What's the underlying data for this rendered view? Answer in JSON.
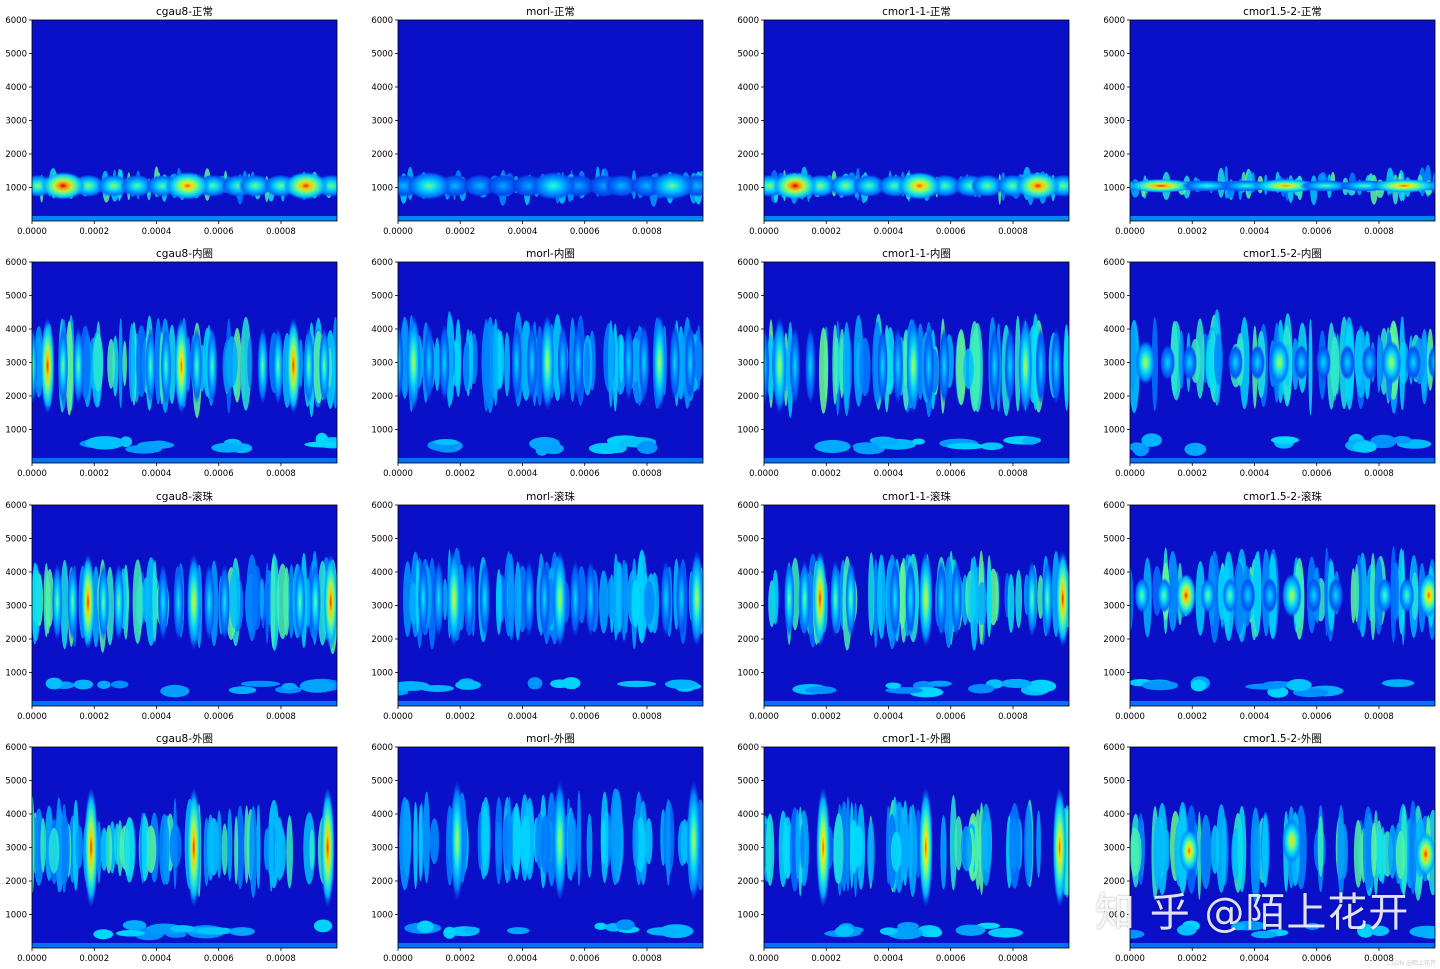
{
  "figure": {
    "watermark": "知 乎 @陌上花开",
    "footer_mark": "CSDN @陌上花开"
  },
  "chart_data": [
    {
      "type": "heatmap",
      "title": "cgau8-正常",
      "wavelet": "cgau8",
      "condition": "正常",
      "xlim": [
        0,
        0.00098
      ],
      "ylim": [
        0,
        6000
      ],
      "xticks": [
        "0.0000",
        "0.0002",
        "0.0004",
        "0.0006",
        "0.0008"
      ],
      "yticks": [
        "1000",
        "2000",
        "3000",
        "4000",
        "5000",
        "6000"
      ],
      "bursts": [
        {
          "t": 0.0001,
          "f": 1050,
          "peak": 1.0
        },
        {
          "t": 0.0005,
          "f": 1050,
          "peak": 0.9
        },
        {
          "t": 0.00088,
          "f": 1050,
          "peak": 0.95
        }
      ]
    },
    {
      "type": "heatmap",
      "title": "morl-正常",
      "wavelet": "morl",
      "condition": "正常",
      "xlim": [
        0,
        0.00098
      ],
      "ylim": [
        0,
        6000
      ],
      "xticks": [
        "0.0000",
        "0.0002",
        "0.0004",
        "0.0006",
        "0.0008"
      ],
      "yticks": [
        "1000",
        "2000",
        "3000",
        "4000",
        "5000",
        "6000"
      ],
      "bursts": [
        {
          "t": 0.0001,
          "f": 1050,
          "peak": 0.6
        },
        {
          "t": 0.0005,
          "f": 1050,
          "peak": 0.55
        },
        {
          "t": 0.00088,
          "f": 1050,
          "peak": 0.6
        }
      ]
    },
    {
      "type": "heatmap",
      "title": "cmor1-1-正常",
      "wavelet": "cmor1-1",
      "condition": "正常",
      "xlim": [
        0,
        0.00098
      ],
      "ylim": [
        0,
        6000
      ],
      "xticks": [
        "0.0000",
        "0.0002",
        "0.0004",
        "0.0006",
        "0.0008"
      ],
      "yticks": [
        "1000",
        "2000",
        "3000",
        "4000",
        "5000",
        "6000"
      ],
      "bursts": [
        {
          "t": 0.0001,
          "f": 1050,
          "peak": 1.0
        },
        {
          "t": 0.0005,
          "f": 1050,
          "peak": 0.9
        },
        {
          "t": 0.00088,
          "f": 1050,
          "peak": 0.95
        }
      ]
    },
    {
      "type": "heatmap",
      "title": "cmor1.5-2-正常",
      "wavelet": "cmor1.5-2",
      "condition": "正常",
      "xlim": [
        0,
        0.00098
      ],
      "ylim": [
        0,
        6000
      ],
      "xticks": [
        "0.0000",
        "0.0002",
        "0.0004",
        "0.0006",
        "0.0008"
      ],
      "yticks": [
        "1000",
        "2000",
        "3000",
        "4000",
        "5000",
        "6000"
      ],
      "bursts": [
        {
          "t": 0.0001,
          "f": 1050,
          "peak": 0.95
        },
        {
          "t": 0.0005,
          "f": 1050,
          "peak": 0.85
        },
        {
          "t": 0.00088,
          "f": 1050,
          "peak": 0.9
        }
      ]
    },
    {
      "type": "heatmap",
      "title": "cgau8-内圈",
      "wavelet": "cgau8",
      "condition": "内圈",
      "xlim": [
        0,
        0.00098
      ],
      "ylim": [
        0,
        6000
      ],
      "xticks": [
        "0.0000",
        "0.0002",
        "0.0004",
        "0.0006",
        "0.0008"
      ],
      "yticks": [
        "1000",
        "2000",
        "3000",
        "4000",
        "5000",
        "6000"
      ],
      "bursts": [
        {
          "t": 5e-05,
          "f": 2900,
          "peak": 0.95
        },
        {
          "t": 0.00048,
          "f": 2900,
          "peak": 0.9
        },
        {
          "t": 0.00084,
          "f": 2900,
          "peak": 0.95
        }
      ]
    },
    {
      "type": "heatmap",
      "title": "morl-内圈",
      "wavelet": "morl",
      "condition": "内圈",
      "xlim": [
        0,
        0.00098
      ],
      "ylim": [
        0,
        6000
      ],
      "xticks": [
        "0.0000",
        "0.0002",
        "0.0004",
        "0.0006",
        "0.0008"
      ],
      "yticks": [
        "1000",
        "2000",
        "3000",
        "4000",
        "5000",
        "6000"
      ],
      "bursts": [
        {
          "t": 5e-05,
          "f": 3000,
          "peak": 0.7
        },
        {
          "t": 0.00048,
          "f": 3000,
          "peak": 0.7
        },
        {
          "t": 0.00084,
          "f": 3000,
          "peak": 0.7
        }
      ]
    },
    {
      "type": "heatmap",
      "title": "cmor1-1-内圈",
      "wavelet": "cmor1-1",
      "condition": "内圈",
      "xlim": [
        0,
        0.00098
      ],
      "ylim": [
        0,
        6000
      ],
      "xticks": [
        "0.0000",
        "0.0002",
        "0.0004",
        "0.0006",
        "0.0008"
      ],
      "yticks": [
        "1000",
        "2000",
        "3000",
        "4000",
        "5000",
        "6000"
      ],
      "bursts": [
        {
          "t": 5e-05,
          "f": 2900,
          "peak": 0.7
        },
        {
          "t": 0.00048,
          "f": 2900,
          "peak": 0.7
        },
        {
          "t": 0.00084,
          "f": 2900,
          "peak": 0.7
        }
      ]
    },
    {
      "type": "heatmap",
      "title": "cmor1.5-2-内圈",
      "wavelet": "cmor1.5-2",
      "condition": "内圈",
      "xlim": [
        0,
        0.00098
      ],
      "ylim": [
        0,
        6000
      ],
      "xticks": [
        "0.0000",
        "0.0002",
        "0.0004",
        "0.0006",
        "0.0008"
      ],
      "yticks": [
        "1000",
        "2000",
        "3000",
        "4000",
        "5000",
        "6000"
      ],
      "bursts": [
        {
          "t": 5e-05,
          "f": 3000,
          "peak": 0.7
        },
        {
          "t": 0.00048,
          "f": 3000,
          "peak": 0.7
        },
        {
          "t": 0.00084,
          "f": 3000,
          "peak": 0.7
        }
      ]
    },
    {
      "type": "heatmap",
      "title": "cgau8-滚珠",
      "wavelet": "cgau8",
      "condition": "滚珠",
      "xlim": [
        0,
        0.00098
      ],
      "ylim": [
        0,
        6000
      ],
      "xticks": [
        "0.0000",
        "0.0002",
        "0.0004",
        "0.0006",
        "0.0008"
      ],
      "yticks": [
        "1000",
        "2000",
        "3000",
        "4000",
        "5000",
        "6000"
      ],
      "bursts": [
        {
          "t": 0.00018,
          "f": 3100,
          "peak": 0.95
        },
        {
          "t": 0.00052,
          "f": 3100,
          "peak": 0.75
        },
        {
          "t": 0.00096,
          "f": 3100,
          "peak": 0.95
        }
      ]
    },
    {
      "type": "heatmap",
      "title": "morl-滚珠",
      "wavelet": "morl",
      "condition": "滚珠",
      "xlim": [
        0,
        0.00098
      ],
      "ylim": [
        0,
        6000
      ],
      "xticks": [
        "0.0000",
        "0.0002",
        "0.0004",
        "0.0006",
        "0.0008"
      ],
      "yticks": [
        "1000",
        "2000",
        "3000",
        "4000",
        "5000",
        "6000"
      ],
      "bursts": [
        {
          "t": 0.00018,
          "f": 3200,
          "peak": 0.75
        },
        {
          "t": 0.00052,
          "f": 3200,
          "peak": 0.7
        },
        {
          "t": 0.00096,
          "f": 3200,
          "peak": 0.7
        }
      ]
    },
    {
      "type": "heatmap",
      "title": "cmor1-1-滚珠",
      "wavelet": "cmor1-1",
      "condition": "滚珠",
      "xlim": [
        0,
        0.00098
      ],
      "ylim": [
        0,
        6000
      ],
      "xticks": [
        "0.0000",
        "0.0002",
        "0.0004",
        "0.0006",
        "0.0008"
      ],
      "yticks": [
        "1000",
        "2000",
        "3000",
        "4000",
        "5000",
        "6000"
      ],
      "bursts": [
        {
          "t": 0.00018,
          "f": 3200,
          "peak": 0.95
        },
        {
          "t": 0.00052,
          "f": 3200,
          "peak": 0.75
        },
        {
          "t": 0.00096,
          "f": 3200,
          "peak": 0.95
        }
      ]
    },
    {
      "type": "heatmap",
      "title": "cmor1.5-2-滚珠",
      "wavelet": "cmor1.5-2",
      "condition": "滚珠",
      "xlim": [
        0,
        0.00098
      ],
      "ylim": [
        0,
        6000
      ],
      "xticks": [
        "0.0000",
        "0.0002",
        "0.0004",
        "0.0006",
        "0.0008"
      ],
      "yticks": [
        "1000",
        "2000",
        "3000",
        "4000",
        "5000",
        "6000"
      ],
      "bursts": [
        {
          "t": 0.00018,
          "f": 3300,
          "peak": 0.95
        },
        {
          "t": 0.00052,
          "f": 3300,
          "peak": 0.7
        },
        {
          "t": 0.00096,
          "f": 3300,
          "peak": 0.9
        }
      ]
    },
    {
      "type": "heatmap",
      "title": "cgau8-外圈",
      "wavelet": "cgau8",
      "condition": "外圈",
      "xlim": [
        0,
        0.00098
      ],
      "ylim": [
        0,
        6000
      ],
      "xticks": [
        "0.0000",
        "0.0002",
        "0.0004",
        "0.0006",
        "0.0008"
      ],
      "yticks": [
        "1000",
        "2000",
        "3000",
        "4000",
        "5000",
        "6000"
      ],
      "bursts": [
        {
          "t": 0.00019,
          "f": 3000,
          "peak": 0.95
        },
        {
          "t": 0.00052,
          "f": 3000,
          "peak": 0.95
        },
        {
          "t": 0.00095,
          "f": 3000,
          "peak": 0.95
        }
      ]
    },
    {
      "type": "heatmap",
      "title": "morl-外圈",
      "wavelet": "morl",
      "condition": "外圈",
      "xlim": [
        0,
        0.00098
      ],
      "ylim": [
        0,
        6000
      ],
      "xticks": [
        "0.0000",
        "0.0002",
        "0.0004",
        "0.0006",
        "0.0008"
      ],
      "yticks": [
        "1000",
        "2000",
        "3000",
        "4000",
        "5000",
        "6000"
      ],
      "bursts": [
        {
          "t": 0.00019,
          "f": 3200,
          "peak": 0.7
        },
        {
          "t": 0.00052,
          "f": 3200,
          "peak": 0.7
        },
        {
          "t": 0.00095,
          "f": 3200,
          "peak": 0.7
        }
      ]
    },
    {
      "type": "heatmap",
      "title": "cmor1-1-外圈",
      "wavelet": "cmor1-1",
      "condition": "外圈",
      "xlim": [
        0,
        0.00098
      ],
      "ylim": [
        0,
        6000
      ],
      "xticks": [
        "0.0000",
        "0.0002",
        "0.0004",
        "0.0006",
        "0.0008"
      ],
      "yticks": [
        "1000",
        "2000",
        "3000",
        "4000",
        "5000",
        "6000"
      ],
      "bursts": [
        {
          "t": 0.00019,
          "f": 3000,
          "peak": 0.9
        },
        {
          "t": 0.00052,
          "f": 3000,
          "peak": 0.9
        },
        {
          "t": 0.00095,
          "f": 3000,
          "peak": 0.9
        }
      ]
    },
    {
      "type": "heatmap",
      "title": "cmor1.5-2-外圈",
      "wavelet": "cmor1.5-2",
      "condition": "外圈",
      "xlim": [
        0,
        0.00098
      ],
      "ylim": [
        0,
        6000
      ],
      "xticks": [
        "0.0000",
        "0.0002",
        "0.0004",
        "0.0006",
        "0.0008"
      ],
      "yticks": [
        "1000",
        "2000",
        "3000",
        "4000",
        "5000",
        "6000"
      ],
      "bursts": [
        {
          "t": 0.00019,
          "f": 2900,
          "peak": 0.9
        },
        {
          "t": 0.00052,
          "f": 3200,
          "peak": 0.8
        },
        {
          "t": 0.00095,
          "f": 2800,
          "peak": 0.95
        }
      ]
    }
  ]
}
